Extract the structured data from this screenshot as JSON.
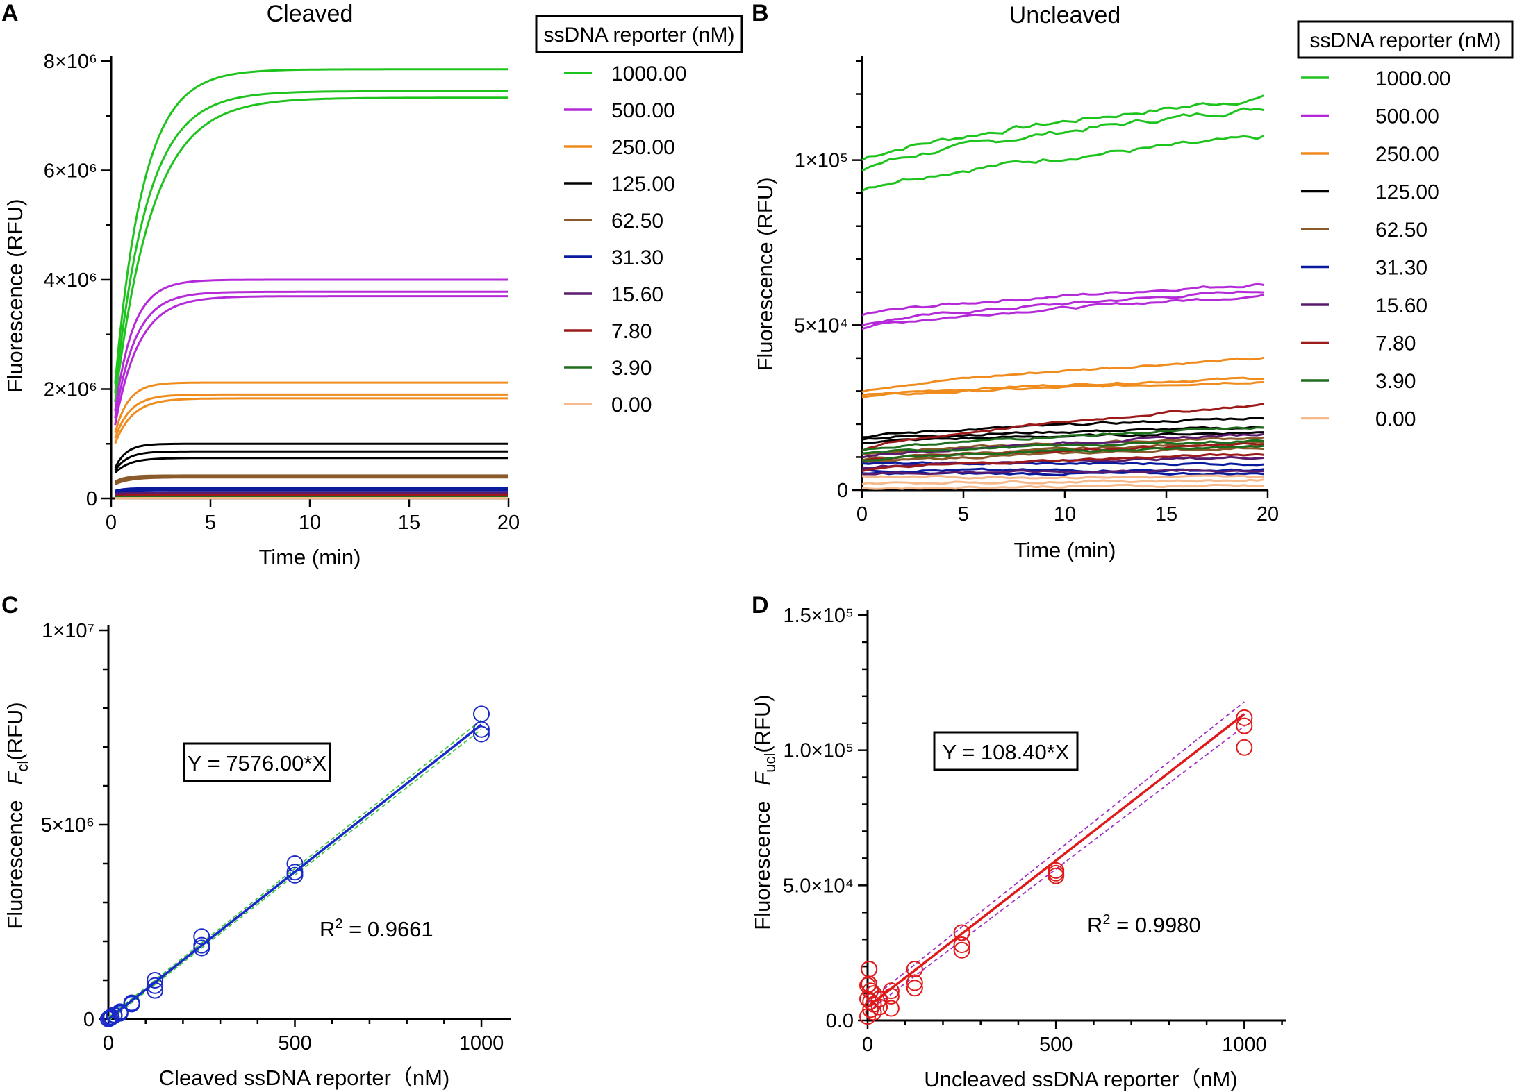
{
  "chart_data": [
    {
      "panel": "A",
      "type": "line",
      "title": "Cleaved",
      "xlabel": "Time (min)",
      "ylabel": "Fluorescence (RFU)",
      "xlim": [
        0,
        20
      ],
      "ylim": [
        0,
        8000000
      ],
      "x_ticks": [
        "0",
        "5",
        "10",
        "15",
        "20"
      ],
      "y_ticks": [
        "0",
        "2×10⁶",
        "4×10⁶",
        "6×10⁶",
        "8×10⁶"
      ],
      "legend_title": "ssDNA reporter (nM)",
      "series": [
        {
          "name": "1000.00",
          "color": "#1ec31e",
          "plateaus": [
            7850000,
            7450000,
            7330000
          ],
          "start": 2100000,
          "k": 0.7
        },
        {
          "name": "500.00",
          "color": "#b42ad8",
          "plateaus": [
            4000000,
            3780000,
            3700000
          ],
          "start": 1600000,
          "k": 1.1
        },
        {
          "name": "250.00",
          "color": "#f08c1e",
          "plateaus": [
            2120000,
            1900000,
            1830000
          ],
          "start": 1200000,
          "k": 1.5
        },
        {
          "name": "125.00",
          "color": "#000000",
          "plateaus": [
            1000000,
            860000,
            740000
          ],
          "start": 560000,
          "k": 1.8
        },
        {
          "name": "62.50",
          "color": "#8b5a2b",
          "plateaus": [
            420000,
            400000,
            385000
          ],
          "start": 310000,
          "k": 1.8
        },
        {
          "name": "31.30",
          "color": "#0a1a9c",
          "plateaus": [
            190000,
            170000,
            150000
          ],
          "start": 140000,
          "k": 2.0
        },
        {
          "name": "15.60",
          "color": "#5a1a6e",
          "plateaus": [
            110000,
            100000,
            90000
          ],
          "start": 80000,
          "k": 2.0
        },
        {
          "name": "7.80",
          "color": "#9c1a1a",
          "plateaus": [
            60000,
            50000,
            45000
          ],
          "start": 40000,
          "k": 2.0
        },
        {
          "name": "3.90",
          "color": "#1e6e1e",
          "plateaus": [
            30000,
            25000,
            22000
          ],
          "start": 20000,
          "k": 2.0
        },
        {
          "name": "0.00",
          "color": "#f5b98c",
          "plateaus": [
            6000,
            4000,
            3000
          ],
          "start": 2000,
          "k": 2.0
        }
      ]
    },
    {
      "panel": "B",
      "type": "line",
      "title": "Uncleaved",
      "xlabel": "Time (min)",
      "ylabel": "Fluorescence (RFU)",
      "xlim": [
        0,
        20
      ],
      "ylim": [
        0,
        130000
      ],
      "x_ticks": [
        "0",
        "5",
        "10",
        "15",
        "20"
      ],
      "y_ticks": [
        "0",
        "5×10⁴",
        "1×10⁵"
      ],
      "legend_title": "ssDNA reporter (nM)",
      "series": [
        {
          "name": "1000.00",
          "color": "#1ec31e",
          "reps": [
            [
              100000,
              119000
            ],
            [
              97000,
              116000
            ],
            [
              91000,
              107000
            ]
          ]
        },
        {
          "name": "500.00",
          "color": "#b42ad8",
          "reps": [
            [
              53000,
              62500
            ],
            [
              50000,
              60500
            ],
            [
              49000,
              59000
            ]
          ]
        },
        {
          "name": "250.00",
          "color": "#f08c1e",
          "reps": [
            [
              30000,
              40000
            ],
            [
              28500,
              34000
            ],
            [
              28000,
              33000
            ]
          ]
        },
        {
          "name": "125.00",
          "color": "#000000",
          "reps": [
            [
              16000,
              22000
            ],
            [
              15500,
              19000
            ],
            [
              14500,
              17500
            ]
          ]
        },
        {
          "name": "62.50",
          "color": "#8b5a2b",
          "reps": [
            [
              11000,
              16000
            ],
            [
              9000,
              14500
            ],
            [
              8000,
              13000
            ]
          ]
        },
        {
          "name": "31.30",
          "color": "#0a1a9c",
          "reps": [
            [
              8000,
              8000
            ],
            [
              6000,
              6000
            ],
            [
              5000,
              5000
            ]
          ]
        },
        {
          "name": "15.60",
          "color": "#5a1a6e",
          "reps": [
            [
              10000,
              17000
            ],
            [
              7000,
              10000
            ],
            [
              5000,
              6000
            ]
          ]
        },
        {
          "name": "7.80",
          "color": "#9c1a1a",
          "reps": [
            [
              12000,
              26000
            ],
            [
              9000,
              14000
            ],
            [
              6000,
              11000
            ]
          ]
        },
        {
          "name": "3.90",
          "color": "#1e6e1e",
          "reps": [
            [
              12000,
              19000
            ],
            [
              11000,
              15000
            ],
            [
              9000,
              13500
            ]
          ]
        },
        {
          "name": "0.00",
          "color": "#f5b98c",
          "reps": [
            [
              4000,
              4000
            ],
            [
              2000,
              3000
            ],
            [
              500,
              1500
            ]
          ]
        }
      ]
    },
    {
      "panel": "C",
      "type": "scatter",
      "xlabel": "Cleaved ssDNA reporter（nM)",
      "ylabel_prefix": "Fluorescence",
      "ylabel_var": "F",
      "ylabel_sub": "cl",
      "ylabel_unit": "(RFU)",
      "xlim": [
        0,
        1080
      ],
      "ylim": [
        0,
        10000000
      ],
      "x_ticks": [
        "0",
        "500",
        "1000"
      ],
      "y_ticks": [
        "0",
        "5×10⁶",
        "1×10⁷"
      ],
      "equation": "Y = 7576.00*X",
      "r2_label": "R",
      "r2_sup": "2",
      "r2_value": " = 0.9661",
      "slope": 7576.0,
      "marker_color": "#1a2ac8",
      "line_color": "#1a2ac8",
      "band_color": "#3cc83c",
      "band_width": 120000,
      "x": [
        0,
        0,
        0,
        3.9,
        3.9,
        3.9,
        7.8,
        7.8,
        7.8,
        15.6,
        15.6,
        15.6,
        31.3,
        31.3,
        31.3,
        62.5,
        62.5,
        62.5,
        125,
        125,
        125,
        250,
        250,
        250,
        500,
        500,
        500,
        1000,
        1000,
        1000
      ],
      "y": [
        3000,
        4000,
        6000,
        22000,
        25000,
        30000,
        45000,
        50000,
        60000,
        90000,
        100000,
        110000,
        150000,
        170000,
        190000,
        385000,
        400000,
        420000,
        740000,
        860000,
        1000000,
        1830000,
        1900000,
        2120000,
        3700000,
        3780000,
        4000000,
        7330000,
        7450000,
        7850000
      ]
    },
    {
      "panel": "D",
      "type": "scatter",
      "xlabel": "Uncleaved ssDNA reporter（nM)",
      "ylabel_prefix": "Fluorescence",
      "ylabel_var": "F",
      "ylabel_sub": "ucl",
      "ylabel_unit": "(RFU)",
      "xlim": [
        0,
        1110
      ],
      "ylim": [
        0,
        150000
      ],
      "x_ticks": [
        "0",
        "500",
        "1000"
      ],
      "y_ticks": [
        "0.0",
        "5.0×10⁴",
        "1.0×10⁵",
        "1.5×10⁵"
      ],
      "equation": "Y = 108.40*X",
      "r2_label": "R",
      "r2_sup": "2",
      "r2_value": " = 0.9980",
      "slope": 108.4,
      "intercept": 5000,
      "marker_color": "#e01a1a",
      "line_color": "#e01a1a",
      "band_color": "#a030c8",
      "band_width": 4500,
      "x": [
        0,
        0,
        0,
        3.9,
        3.9,
        3.9,
        7.8,
        7.8,
        7.8,
        15.6,
        15.6,
        15.6,
        31.3,
        31.3,
        31.3,
        62.5,
        62.5,
        62.5,
        125,
        125,
        125,
        250,
        250,
        250,
        500,
        500,
        500,
        1000,
        1000,
        1000
      ],
      "y": [
        1500,
        8000,
        13000,
        13500,
        19000,
        19000,
        7000,
        11000,
        4000,
        6000,
        10000,
        3000,
        5000,
        5000,
        8000,
        4500,
        9000,
        11000,
        12000,
        14000,
        19000,
        26000,
        28000,
        32500,
        53500,
        54500,
        55500,
        101000,
        109000,
        112000
      ]
    }
  ]
}
